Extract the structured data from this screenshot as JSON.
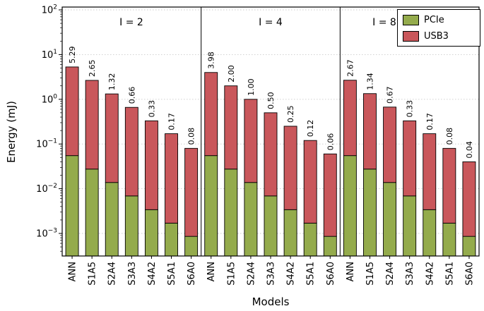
{
  "figure": {
    "xlabel": "Models",
    "ylabel": "Energy (mJ)"
  },
  "legend": {
    "items": [
      {
        "label": "PCIe",
        "color": "#94ab4c"
      },
      {
        "label": "USB3",
        "color": "#c9575b"
      }
    ]
  },
  "chart_data": {
    "type": "bar",
    "stacked": true,
    "yscale": "log",
    "ylabel": "Energy (mJ)",
    "xlabel": "Models",
    "ylim": [
      0.001,
      100
    ],
    "y_tick_exponents": [
      2,
      1,
      0,
      -1,
      -2,
      -3
    ],
    "categories": [
      "ANN",
      "S1A5",
      "S2A4",
      "S3A3",
      "S4A2",
      "S5A1",
      "S6A0"
    ],
    "series_names": [
      "PCIe",
      "USB3"
    ],
    "colors": {
      "PCIe": "#94ab4c",
      "USB3": "#c9575b"
    },
    "grid": true,
    "legend_position": "upper right",
    "panels": [
      {
        "title": "I = 2",
        "totals": [
          5.29,
          2.65,
          1.32,
          0.66,
          0.33,
          0.17,
          0.08
        ],
        "total_labels": [
          "5.29",
          "2.65",
          "1.32",
          "0.66",
          "0.33",
          "0.17",
          "0.08"
        ],
        "pcie": [
          0.055,
          0.0275,
          0.0138,
          0.0069,
          0.0034,
          0.0017,
          0.00086
        ]
      },
      {
        "title": "I = 4",
        "totals": [
          3.98,
          2.0,
          1.0,
          0.5,
          0.25,
          0.12,
          0.06
        ],
        "total_labels": [
          "3.98",
          "2.00",
          "1.00",
          "0.50",
          "0.25",
          "0.12",
          "0.06"
        ],
        "pcie": [
          0.055,
          0.0275,
          0.0138,
          0.0069,
          0.0034,
          0.0017,
          0.00086
        ]
      },
      {
        "title": "I = 8",
        "totals": [
          2.67,
          1.34,
          0.67,
          0.33,
          0.17,
          0.08,
          0.04
        ],
        "total_labels": [
          "2.67",
          "1.34",
          "0.67",
          "0.33",
          "0.17",
          "0.08",
          "0.04"
        ],
        "pcie": [
          0.055,
          0.0275,
          0.0138,
          0.0069,
          0.0034,
          0.0017,
          0.00086
        ]
      }
    ]
  }
}
